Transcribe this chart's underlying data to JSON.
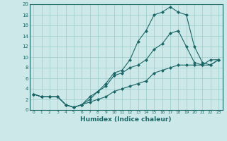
{
  "xlabel": "Humidex (Indice chaleur)",
  "xlim": [
    -0.5,
    23.5
  ],
  "ylim": [
    0,
    20
  ],
  "background_color": "#cce8e8",
  "grid_color": "#99cccc",
  "line_color": "#1a6666",
  "line1_x": [
    0,
    1,
    2,
    3,
    4,
    5,
    6,
    7,
    8,
    9,
    10,
    11,
    12,
    13,
    14,
    15,
    16,
    17,
    18,
    19,
    20,
    21,
    22,
    23
  ],
  "line1_y": [
    3,
    2.5,
    2.5,
    2.5,
    1.0,
    0.5,
    1.0,
    2.0,
    3.5,
    5.0,
    7.0,
    7.5,
    9.5,
    13.0,
    15.0,
    18.0,
    18.5,
    19.5,
    18.5,
    18.0,
    12.0,
    9.0,
    8.5,
    9.5
  ],
  "line2_x": [
    0,
    1,
    2,
    3,
    4,
    5,
    6,
    7,
    8,
    9,
    10,
    11,
    12,
    13,
    14,
    15,
    16,
    17,
    18,
    19,
    20,
    21,
    22,
    23
  ],
  "line2_y": [
    3,
    2.5,
    2.5,
    2.5,
    1.0,
    0.5,
    1.0,
    2.5,
    3.5,
    4.5,
    6.5,
    7.0,
    8.0,
    8.5,
    9.5,
    11.5,
    12.5,
    14.5,
    15.0,
    12.0,
    9.0,
    8.5,
    9.5,
    9.5
  ],
  "line3_x": [
    0,
    1,
    2,
    3,
    4,
    5,
    6,
    7,
    8,
    9,
    10,
    11,
    12,
    13,
    14,
    15,
    16,
    17,
    18,
    19,
    20,
    21,
    22,
    23
  ],
  "line3_y": [
    3,
    2.5,
    2.5,
    2.5,
    1.0,
    0.5,
    1.0,
    1.5,
    2.0,
    2.5,
    3.5,
    4.0,
    4.5,
    5.0,
    5.5,
    7.0,
    7.5,
    8.0,
    8.5,
    8.5,
    8.5,
    8.5,
    8.5,
    9.5
  ]
}
